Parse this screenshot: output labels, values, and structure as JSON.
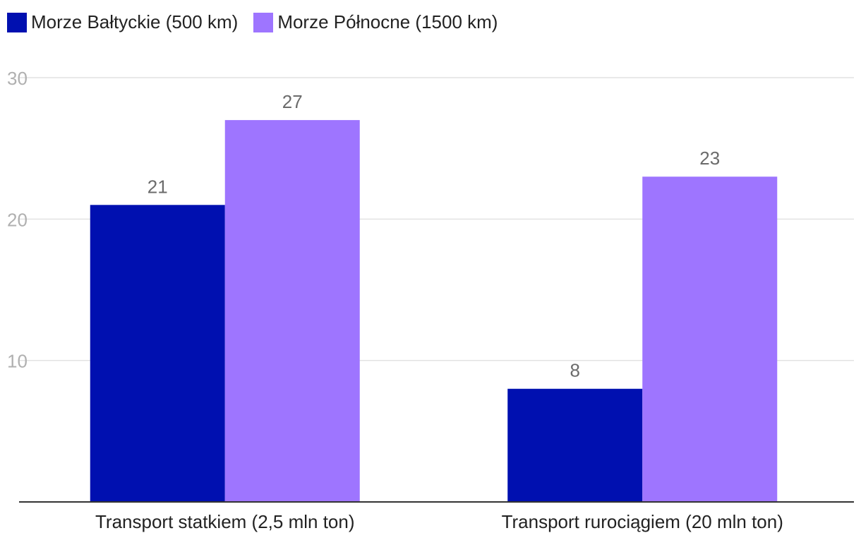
{
  "chart_data": {
    "type": "bar",
    "title": "",
    "xlabel": "",
    "ylabel": "",
    "categories": [
      "Transport statkiem (2,5 mln ton)",
      "Transport rurociągiem (20 mln ton)"
    ],
    "series": [
      {
        "name": "Morze Bałtyckie (500 km)",
        "color": "#0010b0",
        "values": [
          21,
          8
        ],
        "value_labels": [
          "21",
          "8"
        ]
      },
      {
        "name": "Morze Północne (1500 km)",
        "color": "#9e75ff",
        "values": [
          27,
          23
        ],
        "value_labels": [
          "27",
          "23"
        ]
      }
    ],
    "ylim": [
      0,
      30
    ],
    "yticks": [
      10,
      20,
      30
    ],
    "ytick_labels": [
      "10",
      "20",
      "30"
    ],
    "grid": true,
    "legend_position": "top-left"
  }
}
